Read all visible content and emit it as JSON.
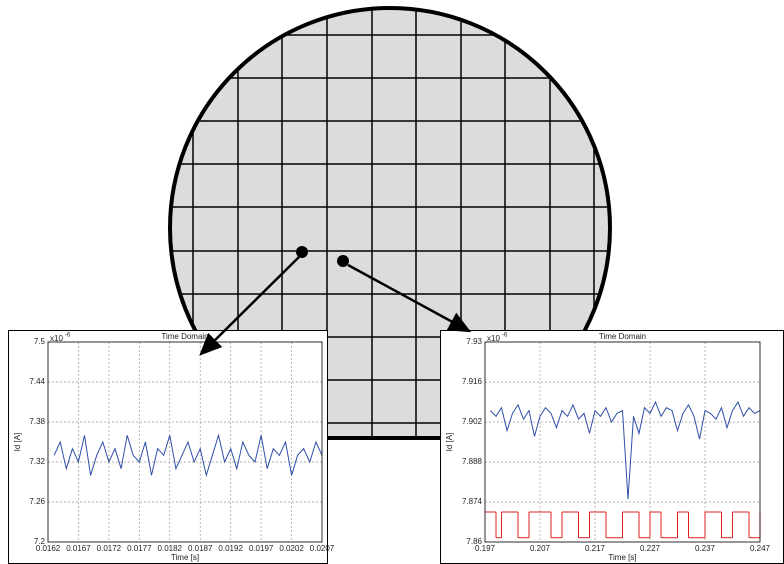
{
  "chart_data": [
    {
      "type": "line",
      "title": "Time Domain",
      "x_label": "Time [s]",
      "y_label": "Id [A]",
      "y_multiplier": "x10",
      "y_exponent": "-6",
      "xlim": [
        0.0162,
        0.0207
      ],
      "xticks": [
        0.0162,
        0.0167,
        0.0172,
        0.0177,
        0.0182,
        0.0187,
        0.0192,
        0.0197,
        0.0202,
        0.0207
      ],
      "ylim": [
        7.2,
        7.5
      ],
      "yticks": [
        7.2,
        7.26,
        7.32,
        7.38,
        7.44,
        7.5
      ],
      "grid": true,
      "series": [
        {
          "color": "#2f4fa8",
          "step": false,
          "x": [
            0.0163,
            0.0164,
            0.0165,
            0.0166,
            0.0167,
            0.0168,
            0.0169,
            0.017,
            0.0171,
            0.0172,
            0.0173,
            0.0174,
            0.0175,
            0.0176,
            0.0177,
            0.0178,
            0.0179,
            0.018,
            0.0181,
            0.0182,
            0.0183,
            0.0184,
            0.0185,
            0.0186,
            0.0187,
            0.0188,
            0.0189,
            0.019,
            0.0191,
            0.0192,
            0.0193,
            0.0194,
            0.0195,
            0.0196,
            0.0197,
            0.0198,
            0.0199,
            0.02,
            0.0201,
            0.0202,
            0.0203,
            0.0204,
            0.0205,
            0.0206,
            0.0207
          ],
          "values": [
            7.33,
            7.35,
            7.31,
            7.34,
            7.32,
            7.36,
            7.3,
            7.33,
            7.35,
            7.32,
            7.34,
            7.31,
            7.36,
            7.33,
            7.32,
            7.35,
            7.3,
            7.34,
            7.33,
            7.36,
            7.31,
            7.33,
            7.35,
            7.32,
            7.34,
            7.3,
            7.33,
            7.36,
            7.32,
            7.34,
            7.31,
            7.35,
            7.33,
            7.32,
            7.36,
            7.31,
            7.34,
            7.33,
            7.35,
            7.3,
            7.33,
            7.34,
            7.32,
            7.35,
            7.33
          ]
        }
      ]
    },
    {
      "type": "line",
      "title": "Time Domain",
      "x_label": "Time [s]",
      "y_label": "Id [A]",
      "y_multiplier": "x10",
      "y_exponent": "-6",
      "xlim": [
        0.197,
        0.247
      ],
      "xticks": [
        0.197,
        0.207,
        0.217,
        0.227,
        0.237,
        0.247
      ],
      "ylim": [
        7.86,
        7.93
      ],
      "yticks": [
        7.86,
        7.874,
        7.888,
        7.902,
        7.916,
        7.93
      ],
      "grid": true,
      "series": [
        {
          "color": "#2f4fa8",
          "step": false,
          "x": [
            0.198,
            0.199,
            0.2,
            0.201,
            0.202,
            0.203,
            0.204,
            0.205,
            0.206,
            0.207,
            0.208,
            0.209,
            0.21,
            0.211,
            0.212,
            0.213,
            0.214,
            0.215,
            0.216,
            0.217,
            0.218,
            0.219,
            0.22,
            0.221,
            0.222,
            0.223,
            0.224,
            0.225,
            0.226,
            0.227,
            0.228,
            0.229,
            0.23,
            0.231,
            0.232,
            0.233,
            0.234,
            0.235,
            0.236,
            0.237,
            0.238,
            0.239,
            0.24,
            0.241,
            0.242,
            0.243,
            0.244,
            0.245,
            0.246,
            0.247
          ],
          "values": [
            7.906,
            7.904,
            7.907,
            7.899,
            7.905,
            7.908,
            7.903,
            7.906,
            7.897,
            7.904,
            7.907,
            7.905,
            7.9,
            7.906,
            7.904,
            7.908,
            7.903,
            7.905,
            7.898,
            7.906,
            7.904,
            7.907,
            7.902,
            7.905,
            7.906,
            7.875,
            7.904,
            7.898,
            7.907,
            7.905,
            7.909,
            7.904,
            7.907,
            7.906,
            7.899,
            7.905,
            7.908,
            7.904,
            7.896,
            7.906,
            7.905,
            7.903,
            7.907,
            7.9,
            7.906,
            7.909,
            7.904,
            7.907,
            7.905,
            7.906
          ]
        },
        {
          "color": "#e02020",
          "step": true,
          "x": [
            0.197,
            0.199,
            0.2,
            0.203,
            0.205,
            0.209,
            0.211,
            0.214,
            0.216,
            0.219,
            0.222,
            0.225,
            0.227,
            0.229,
            0.232,
            0.234,
            0.237,
            0.24,
            0.242,
            0.245,
            0.247
          ],
          "values": [
            7.8705,
            7.8615,
            7.8705,
            7.8615,
            7.8705,
            7.8615,
            7.8705,
            7.8615,
            7.8705,
            7.8615,
            7.8705,
            7.8615,
            7.8705,
            7.8615,
            7.8705,
            7.8615,
            7.8705,
            7.8615,
            7.8705,
            7.8615,
            7.8705
          ]
        }
      ]
    }
  ]
}
